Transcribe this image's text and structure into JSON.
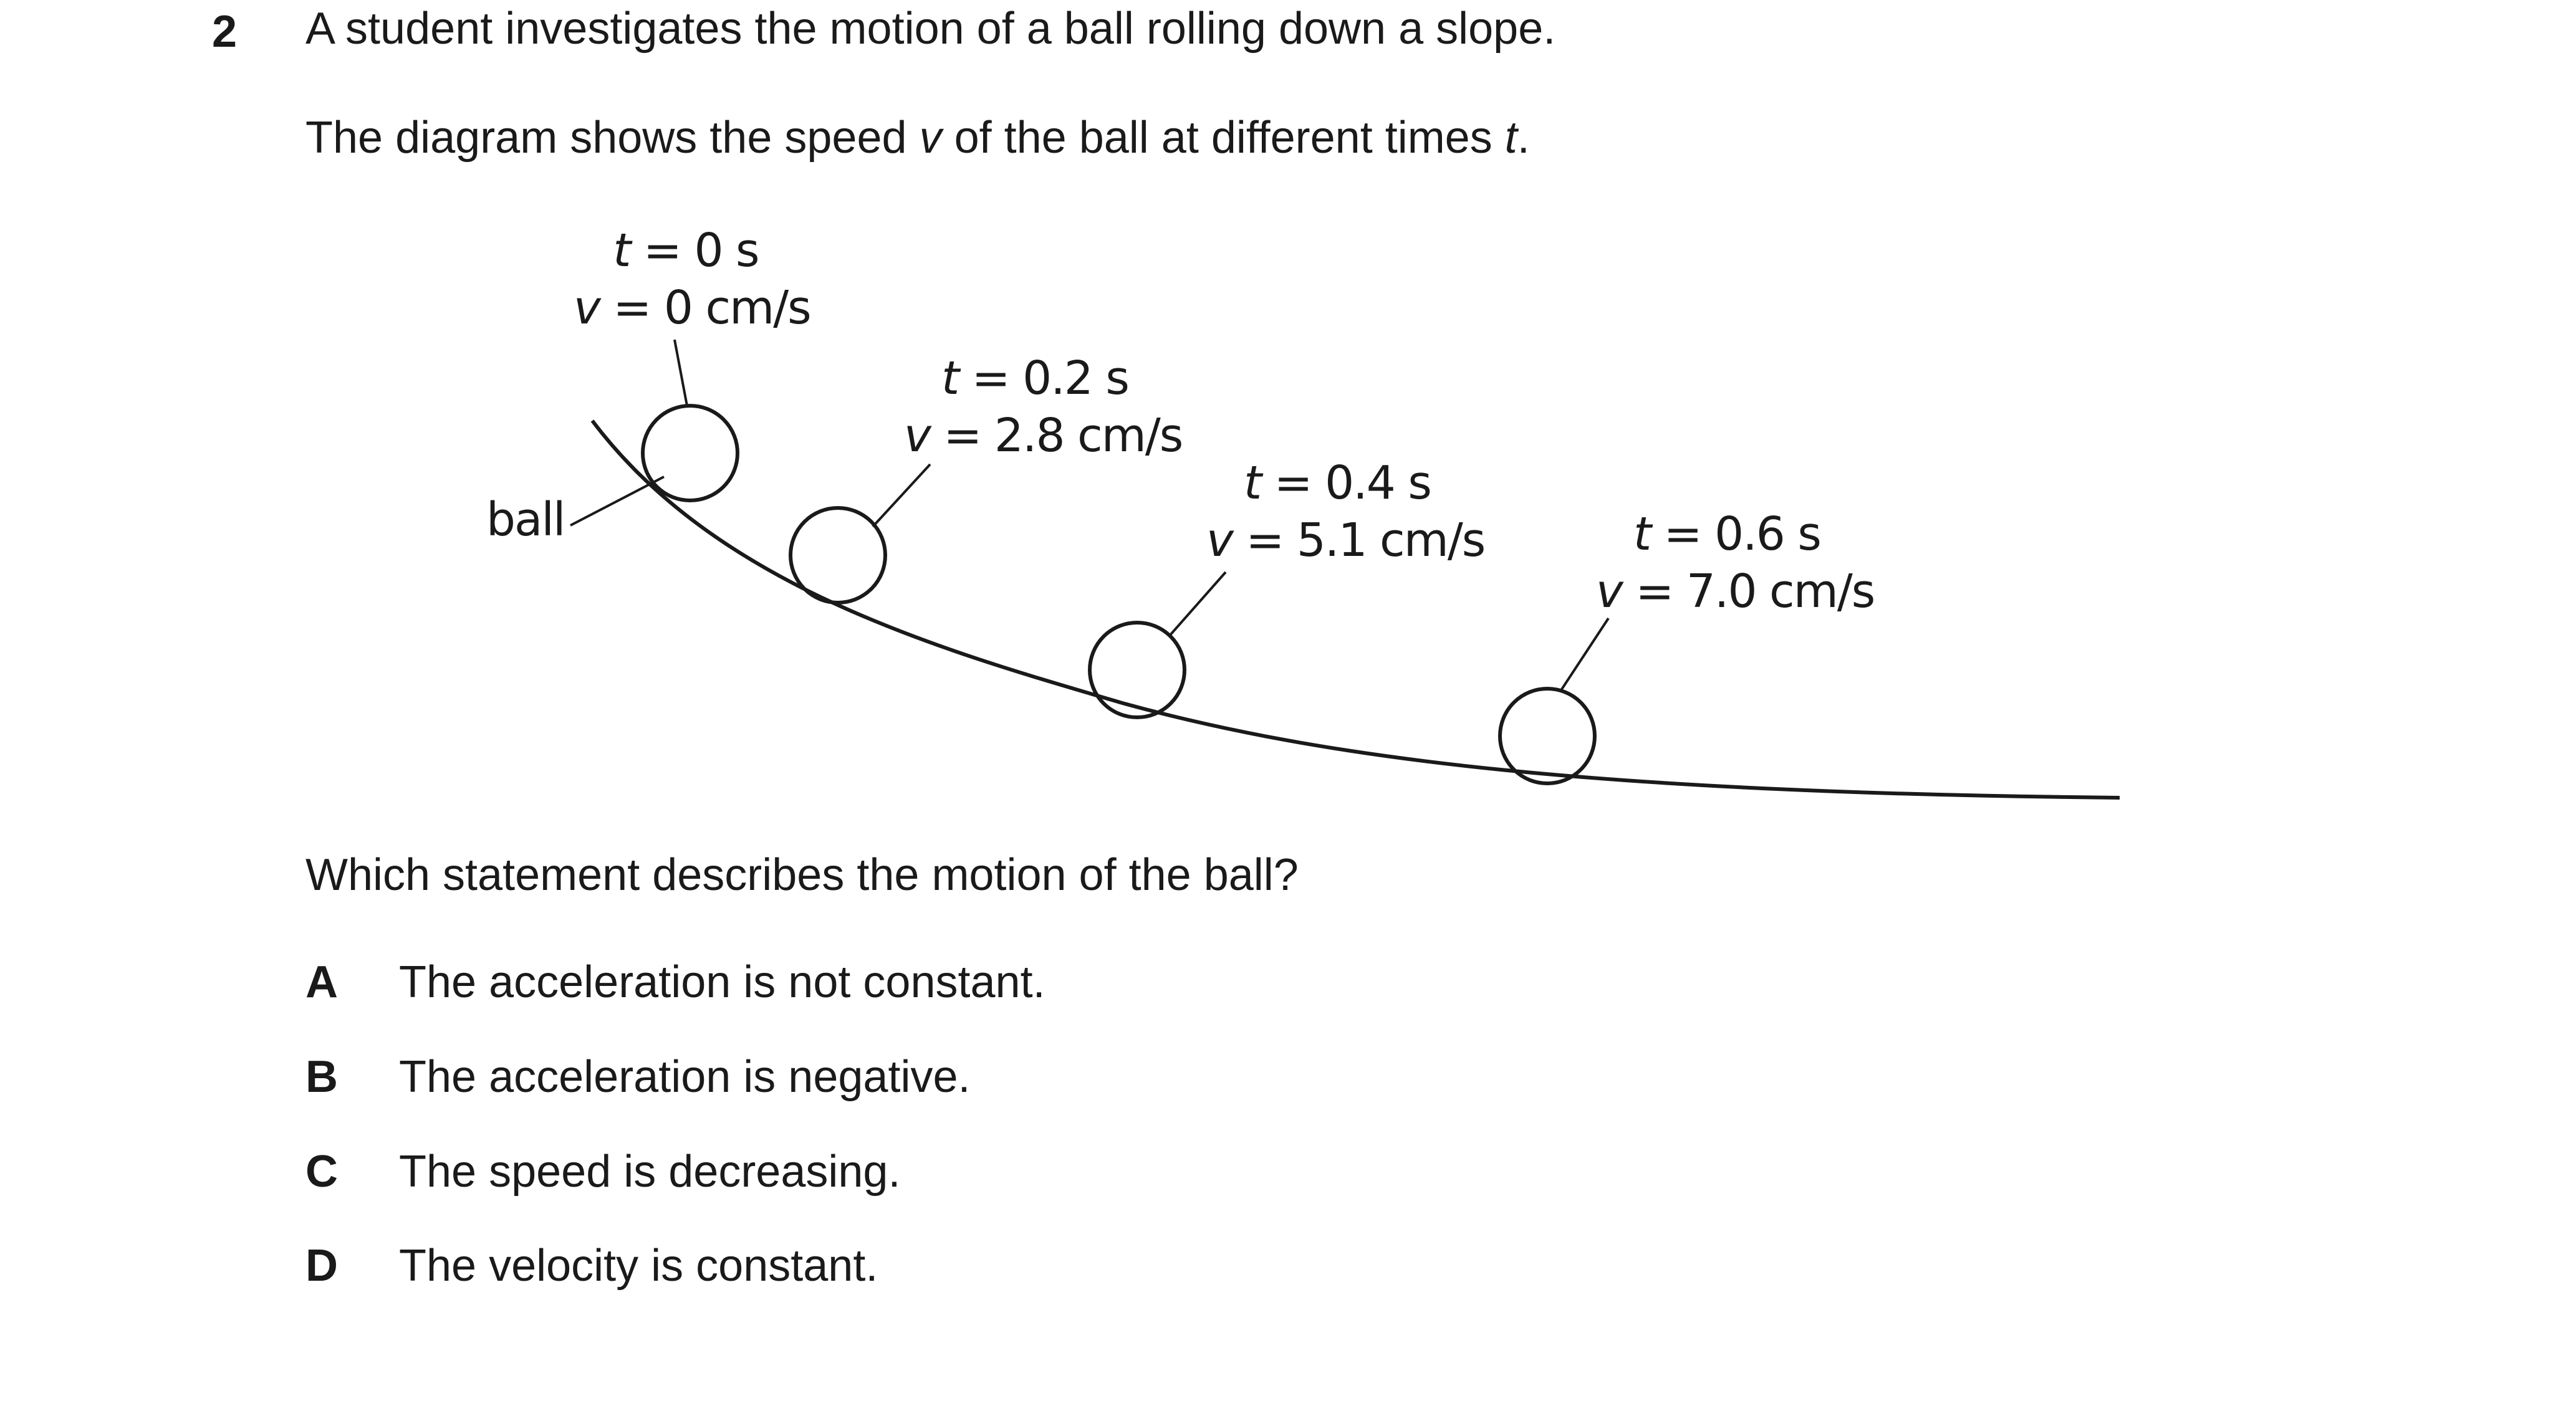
{
  "question": {
    "number": "2",
    "stem_line1": "A student investigates the motion of a ball rolling down a slope.",
    "stem_line2_parts": [
      "The diagram shows the speed ",
      "v",
      " of the ball at different times ",
      "t",
      "."
    ],
    "prompt": "Which statement describes the motion of the ball?"
  },
  "diagram": {
    "ball_label": "ball",
    "positions": [
      {
        "t_var": "t",
        "t_text": " = 0 s",
        "v_var": "v",
        "v_text": " = 0 cm/s"
      },
      {
        "t_var": "t",
        "t_text": " = 0.2 s",
        "v_var": "v",
        "v_text": " = 2.8 cm/s"
      },
      {
        "t_var": "t",
        "t_text": " = 0.4 s",
        "v_var": "v",
        "v_text": " = 5.1 cm/s"
      },
      {
        "t_var": "t",
        "t_text": " = 0.6 s",
        "v_var": "v",
        "v_text": " = 7.0 cm/s"
      }
    ]
  },
  "options": [
    {
      "letter": "A",
      "text": "The acceleration is not constant."
    },
    {
      "letter": "B",
      "text": "The acceleration is negative."
    },
    {
      "letter": "C",
      "text": "The speed is decreasing."
    },
    {
      "letter": "D",
      "text": "The velocity is constant."
    }
  ]
}
